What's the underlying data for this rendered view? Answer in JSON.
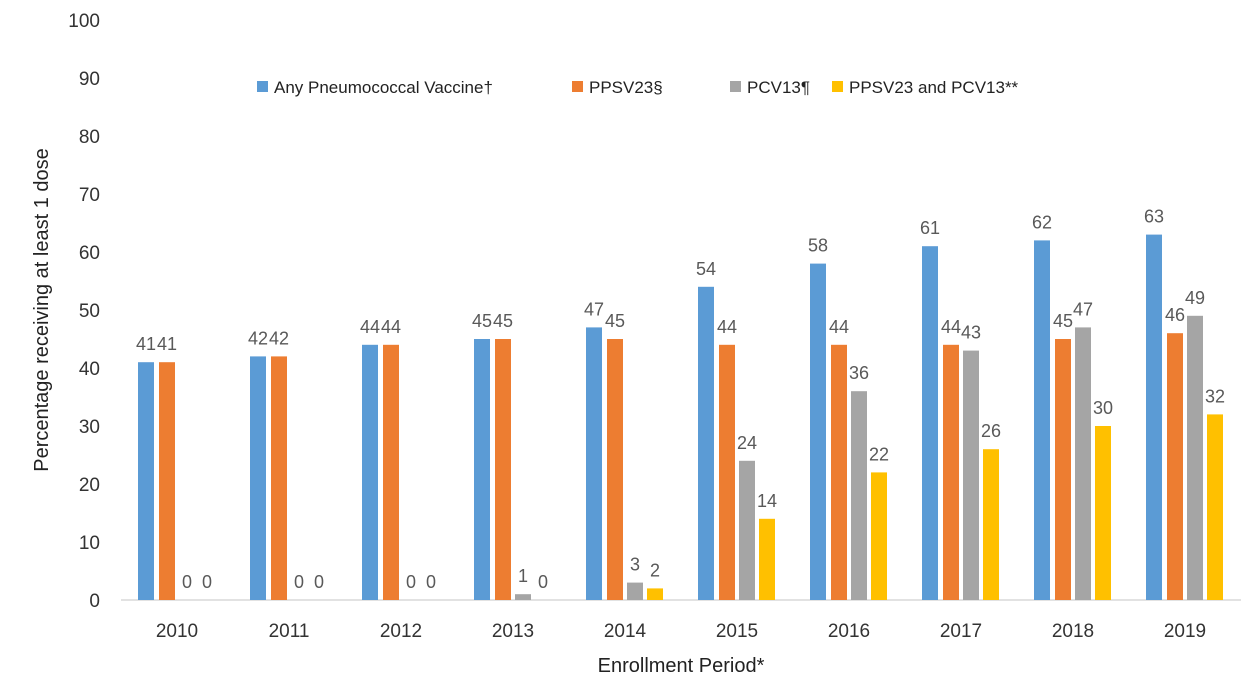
{
  "chart_data": {
    "type": "bar",
    "title": "",
    "xlabel": "Enrollment Period*",
    "ylabel": "Percentage receiving at least 1 dose",
    "ylim": [
      0,
      100
    ],
    "yticks": [
      "0",
      "10",
      "20",
      "30",
      "40",
      "50",
      "60",
      "70",
      "80",
      "90",
      "100"
    ],
    "grid": false,
    "legend_position": "top",
    "categories": [
      "2010",
      "2011",
      "2012",
      "2013",
      "2014",
      "2015",
      "2016",
      "2017",
      "2018",
      "2019"
    ],
    "series": [
      {
        "name": "Any Pneumococcal Vaccine†",
        "color": "#5b9bd5",
        "values": [
          41,
          42,
          44,
          45,
          47,
          54,
          58,
          61,
          62,
          63
        ]
      },
      {
        "name": "PPSV23§",
        "color": "#ed7d31",
        "values": [
          41,
          42,
          44,
          45,
          45,
          44,
          44,
          44,
          45,
          46
        ]
      },
      {
        "name": "PCV13¶",
        "color": "#a5a5a5",
        "values": [
          0,
          0,
          0,
          1,
          3,
          24,
          36,
          43,
          47,
          49
        ]
      },
      {
        "name": "PPSV23 and PCV13**",
        "color": "#ffc000",
        "values": [
          0,
          0,
          0,
          0,
          2,
          14,
          22,
          26,
          30,
          32
        ]
      }
    ]
  }
}
